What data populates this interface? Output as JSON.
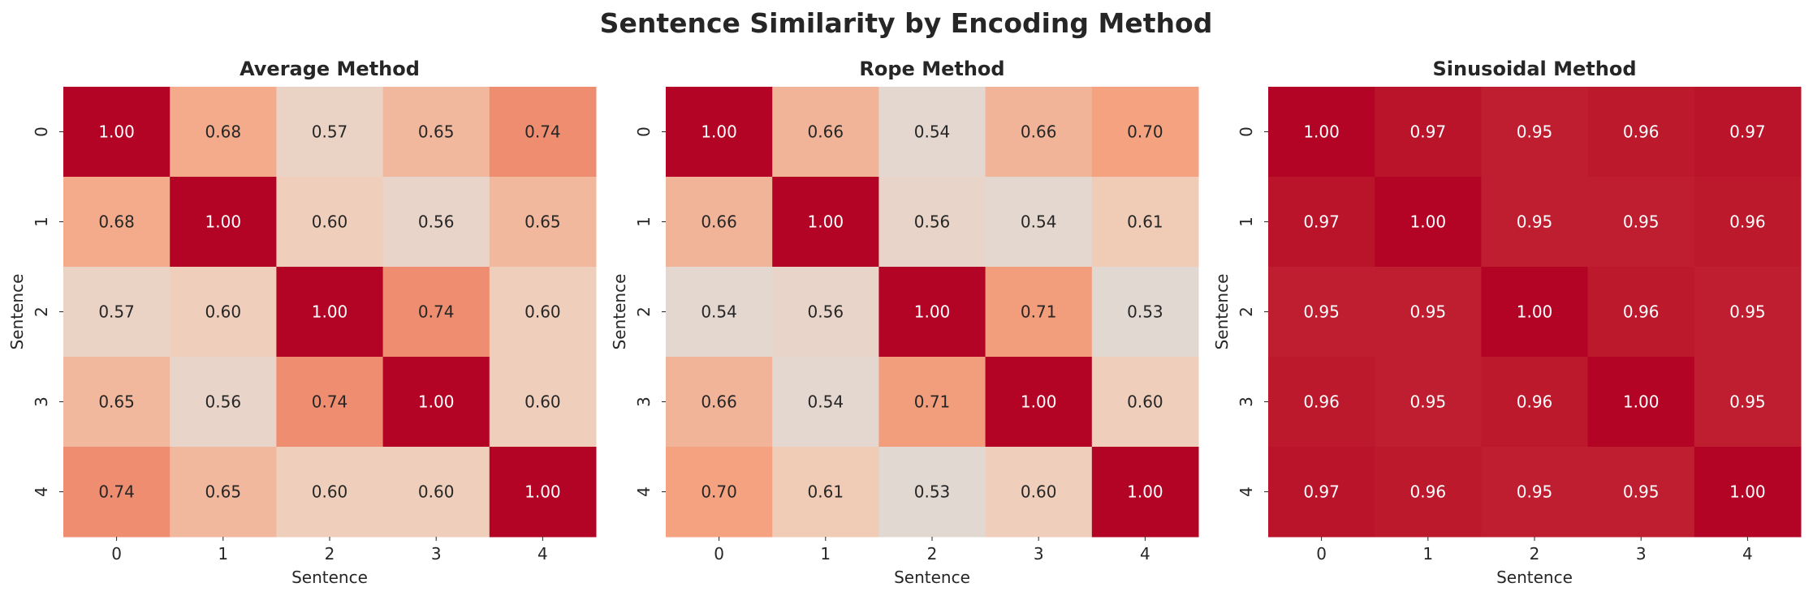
{
  "chart_data": {
    "title": "Sentence Similarity by Encoding Method",
    "colormap": {
      "low": "#3b4cc0",
      "mid": "#dddcdc",
      "high": "#b40426",
      "vmin": 0.0,
      "vmax": 1.0,
      "name": "coolwarm"
    },
    "panels": [
      {
        "type": "heatmap",
        "title": "Average Method",
        "xlabel": "Sentence",
        "ylabel": "Sentence",
        "x_ticks": [
          "0",
          "1",
          "2",
          "3",
          "4"
        ],
        "y_ticks": [
          "0",
          "1",
          "2",
          "3",
          "4"
        ],
        "values": [
          [
            1.0,
            0.68,
            0.57,
            0.65,
            0.74
          ],
          [
            0.68,
            1.0,
            0.6,
            0.56,
            0.65
          ],
          [
            0.57,
            0.6,
            1.0,
            0.74,
            0.6
          ],
          [
            0.65,
            0.56,
            0.74,
            1.0,
            0.6
          ],
          [
            0.74,
            0.65,
            0.6,
            0.6,
            1.0
          ]
        ]
      },
      {
        "type": "heatmap",
        "title": "Rope Method",
        "xlabel": "Sentence",
        "ylabel": "Sentence",
        "x_ticks": [
          "0",
          "1",
          "2",
          "3",
          "4"
        ],
        "y_ticks": [
          "0",
          "1",
          "2",
          "3",
          "4"
        ],
        "values": [
          [
            1.0,
            0.66,
            0.54,
            0.66,
            0.7
          ],
          [
            0.66,
            1.0,
            0.56,
            0.54,
            0.61
          ],
          [
            0.54,
            0.56,
            1.0,
            0.71,
            0.53
          ],
          [
            0.66,
            0.54,
            0.71,
            1.0,
            0.6
          ],
          [
            0.7,
            0.61,
            0.53,
            0.6,
            1.0
          ]
        ]
      },
      {
        "type": "heatmap",
        "title": "Sinusoidal Method",
        "xlabel": "Sentence",
        "ylabel": "Sentence",
        "x_ticks": [
          "0",
          "1",
          "2",
          "3",
          "4"
        ],
        "y_ticks": [
          "0",
          "1",
          "2",
          "3",
          "4"
        ],
        "values": [
          [
            1.0,
            0.97,
            0.95,
            0.96,
            0.97
          ],
          [
            0.97,
            1.0,
            0.95,
            0.95,
            0.96
          ],
          [
            0.95,
            0.95,
            1.0,
            0.96,
            0.95
          ],
          [
            0.96,
            0.95,
            0.96,
            1.0,
            0.95
          ],
          [
            0.97,
            0.96,
            0.95,
            0.95,
            1.0
          ]
        ]
      }
    ]
  }
}
